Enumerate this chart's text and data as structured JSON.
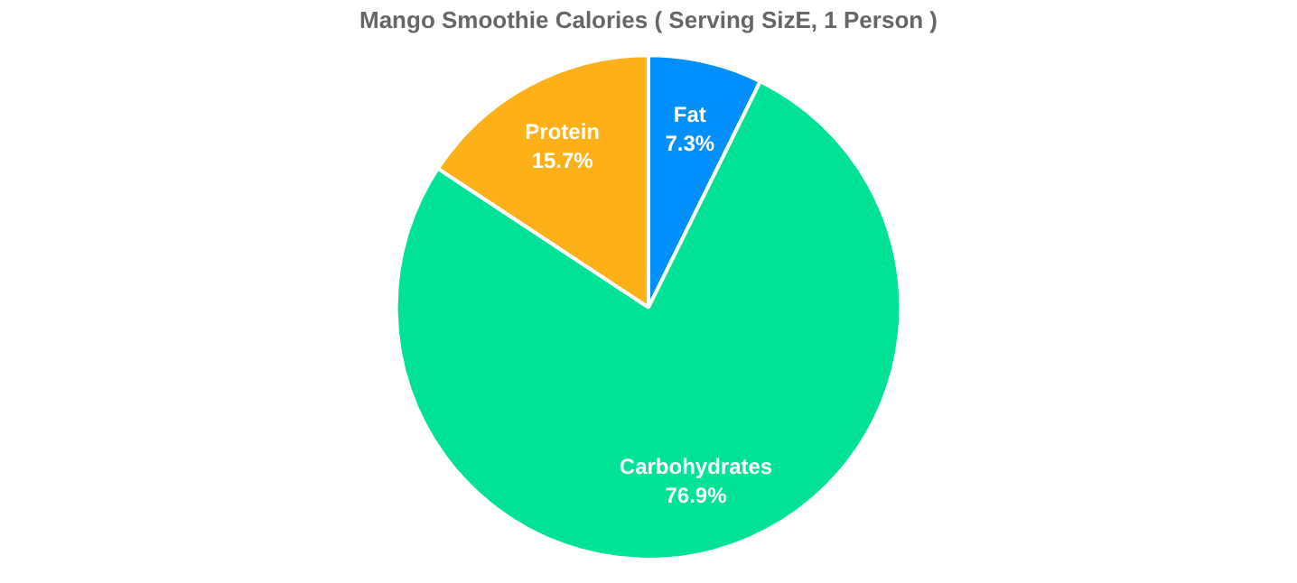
{
  "chart_data": {
    "type": "pie",
    "title": "Mango Smoothie Calories ( Serving SizE, 1 Person )",
    "categories": [
      "Fat",
      "Carbohydrates",
      "Protein"
    ],
    "values": [
      7.3,
      76.9,
      15.7
    ],
    "value_labels": [
      "7.3%",
      "76.9%",
      "15.7%"
    ],
    "colors": [
      "#008ffb",
      "#00e396",
      "#feb019"
    ],
    "legend": false
  }
}
